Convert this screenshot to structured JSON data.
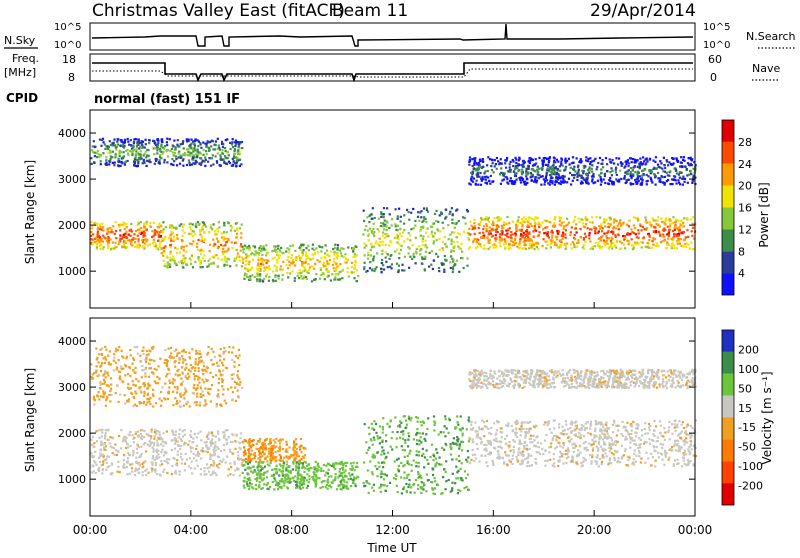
{
  "header": {
    "title": "Christmas Valley East (fitACF)",
    "beam": "Beam 11",
    "date": "29/Apr/2014"
  },
  "top_panels": {
    "nsky_label": "N.Sky",
    "nsky_ticks": [
      "10^5",
      "10^0"
    ],
    "nsearch_label": "N.Search",
    "nsearch_ticks": [
      "10^5",
      "10^0"
    ],
    "freq_label": "Freq.",
    "freq_unit": "[MHz]",
    "freq_ticks": [
      "18",
      "8"
    ],
    "nave_label": "Nave",
    "nave_ticks": [
      "60",
      "0"
    ],
    "cpid_label": "CPID",
    "cpid_value": "normal (fast) 151 IF"
  },
  "chart_data": [
    {
      "type": "heatmap",
      "ylabel": "Slant Range [km]",
      "ylim": [
        200,
        4500
      ],
      "y_ticks": [
        "4000",
        "3000",
        "2000",
        "1000"
      ],
      "colorbar_label": "Power [dB]",
      "colorbar_ticks": [
        "28",
        "24",
        "20",
        "16",
        "12",
        "8",
        "4"
      ],
      "colorbar_colors": [
        "#e00000",
        "#ff4a00",
        "#ff9a00",
        "#f2e200",
        "#86c83a",
        "#3c8c4a",
        "#2a3c9c",
        "#1010ff"
      ],
      "echo_regions": [
        {
          "t": [
            0.0,
            2.8
          ],
          "range": [
            1500,
            2100
          ],
          "level": 26
        },
        {
          "t": [
            2.8,
            6.0
          ],
          "range": [
            1100,
            2100
          ],
          "level": 22
        },
        {
          "t": [
            6.0,
            10.6
          ],
          "range": [
            800,
            1600
          ],
          "level": 20
        },
        {
          "t": [
            10.8,
            15.0
          ],
          "range": [
            1000,
            2400
          ],
          "level": 16
        },
        {
          "t": [
            15.0,
            24.0
          ],
          "range": [
            1500,
            2200
          ],
          "level": 26
        },
        {
          "t": [
            0.0,
            6.0
          ],
          "range": [
            3300,
            3900
          ],
          "level": 12
        },
        {
          "t": [
            15.0,
            24.0
          ],
          "range": [
            2900,
            3500
          ],
          "level": 8
        }
      ]
    },
    {
      "type": "heatmap",
      "xlabel": "Time UT",
      "ylabel": "Slant Range [km]",
      "ylim": [
        200,
        4500
      ],
      "y_ticks": [
        "4000",
        "3000",
        "2000",
        "1000"
      ],
      "x_ticks": [
        "00:00",
        "04:00",
        "08:00",
        "12:00",
        "16:00",
        "20:00",
        "00:00"
      ],
      "colorbar_label": "Velocity [m s⁻¹]",
      "colorbar_ticks": [
        "200",
        "100",
        "50",
        "15",
        "-15",
        "-50",
        "-100",
        "-200"
      ],
      "colorbar_colors": [
        "#2030c0",
        "#3c8c4a",
        "#6cc43c",
        "#c8c8c0",
        "#f0a020",
        "#ff7a00",
        "#ff4000",
        "#e00000"
      ],
      "echo_regions": [
        {
          "t": [
            0.0,
            6.0
          ],
          "range": [
            1100,
            2100
          ],
          "velocity": 0
        },
        {
          "t": [
            6.0,
            8.5
          ],
          "range": [
            1400,
            1900
          ],
          "velocity": -40
        },
        {
          "t": [
            6.0,
            10.6
          ],
          "range": [
            800,
            1400
          ],
          "velocity": 60
        },
        {
          "t": [
            10.8,
            15.0
          ],
          "range": [
            700,
            2400
          ],
          "velocity": 70
        },
        {
          "t": [
            15.0,
            24.0
          ],
          "range": [
            1300,
            2300
          ],
          "velocity": 0
        },
        {
          "t": [
            15.0,
            24.0
          ],
          "range": [
            3000,
            3400
          ],
          "velocity": 0
        },
        {
          "t": [
            0.0,
            6.0
          ],
          "range": [
            2600,
            3900
          ],
          "velocity": -30
        }
      ]
    }
  ]
}
